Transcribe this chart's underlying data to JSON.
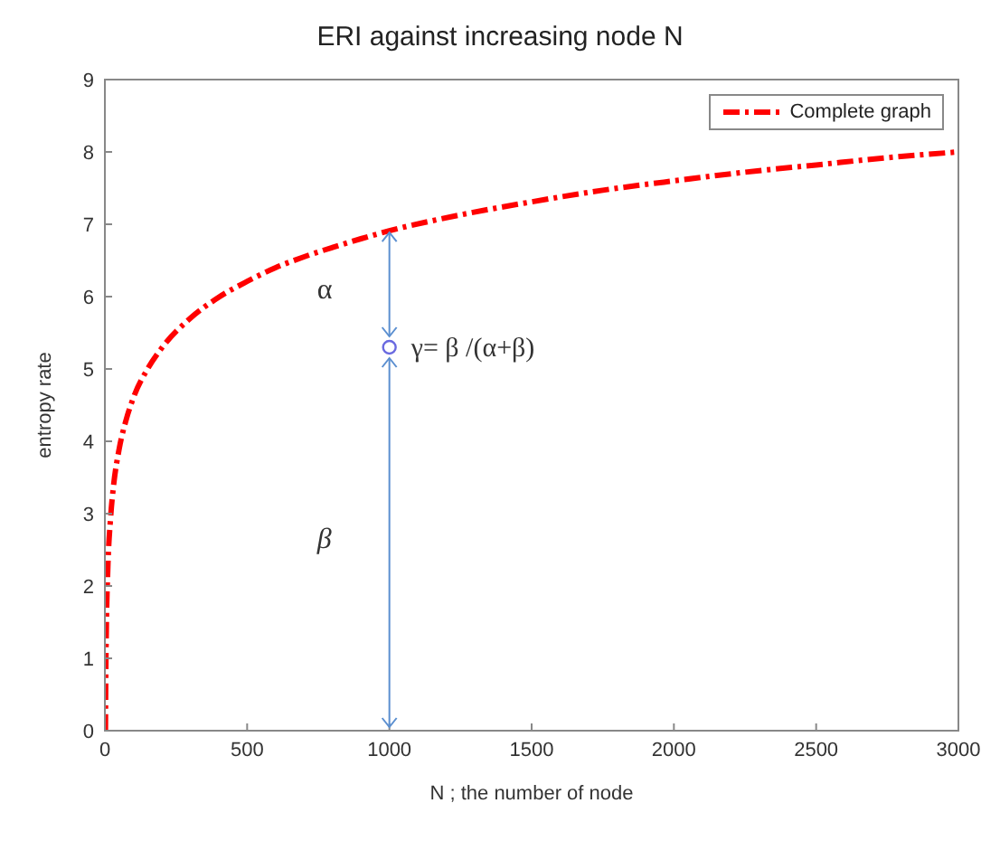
{
  "chart_data": {
    "type": "line",
    "title": "ERI against increasing node N",
    "xlabel": "N ; the number of node",
    "ylabel": "entropy rate",
    "xlim": [
      0,
      3000
    ],
    "xticks": [
      0,
      500,
      1000,
      1500,
      2000,
      2500,
      3000
    ],
    "ylim": [
      0,
      9
    ],
    "yticks": [
      0,
      1,
      2,
      3,
      4,
      5,
      6,
      7,
      8,
      9
    ],
    "legend": "top right",
    "line_style": "dashed",
    "marker": "none",
    "series": [
      {
        "name": "Complete graph",
        "color": "#ff0000",
        "x": [
          2,
          3,
          5,
          10,
          20,
          30,
          50,
          75,
          100,
          150,
          200,
          300,
          400,
          500,
          600,
          700,
          800,
          900,
          1000,
          1250,
          1500,
          1750,
          2000,
          2250,
          2500,
          2750,
          3000
        ],
        "values": [
          0,
          0.69,
          1.39,
          2.2,
          2.94,
          3.37,
          3.89,
          4.3,
          4.6,
          5.0,
          5.29,
          5.7,
          5.99,
          6.21,
          6.4,
          6.55,
          6.68,
          6.8,
          6.91,
          7.13,
          7.31,
          7.47,
          7.6,
          7.72,
          7.82,
          7.92,
          8.0
        ]
      },
      {
        "type": "scatter",
        "color": "#6a6ae0",
        "marker": "circle",
        "x": [
          1000
        ],
        "values": [
          5.3
        ]
      }
    ],
    "annotations": [
      "α",
      {
        "text": "γ= β  /(α+β)",
        "x": 1000,
        "y": 5.3
      },
      "β"
    ]
  }
}
